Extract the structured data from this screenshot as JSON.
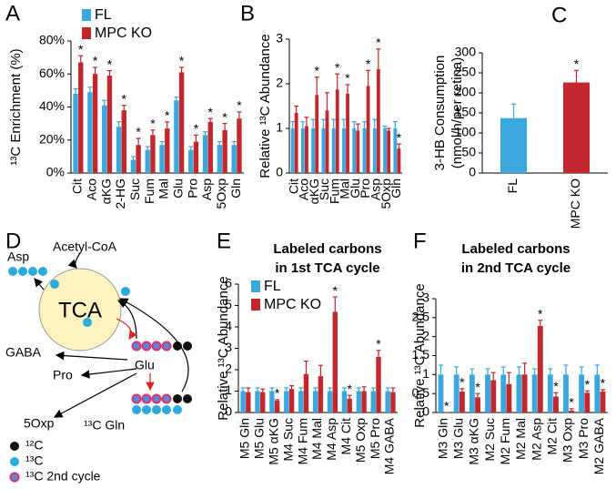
{
  "chart_data": [
    {
      "type": "bar",
      "panel": "A",
      "y_label": "¹³C Enrichment (%)",
      "categories": [
        "Cit",
        "Aco",
        "αKG",
        "2-HG",
        "Suc",
        "Fum",
        "Mal",
        "Glu",
        "Pro",
        "Asp",
        "5Oxp",
        "Gln"
      ],
      "series": [
        {
          "name": "FL",
          "color": "#3aa8de",
          "values": [
            48,
            49,
            41,
            28,
            8,
            14,
            17,
            44,
            14,
            23,
            17,
            17
          ],
          "errors": [
            3,
            3,
            3,
            3,
            2,
            2,
            2,
            2,
            2,
            2,
            2,
            2
          ]
        },
        {
          "name": "MPC KO",
          "color": "#c1272d",
          "values": [
            67,
            60,
            59,
            38,
            17,
            23,
            27,
            61,
            19,
            31,
            26,
            33
          ],
          "errors": [
            4,
            4,
            3,
            3,
            4,
            3,
            4,
            3,
            4,
            2,
            4,
            4
          ],
          "markers": [
            "*",
            "*",
            "*",
            "*",
            "*",
            "*",
            "*",
            "*",
            "*",
            "*",
            "*",
            "*"
          ]
        }
      ],
      "ylim": [
        0,
        80
      ],
      "yticks": [
        {
          "value": 0,
          "label": "0%"
        },
        {
          "value": 20,
          "label": "20%"
        },
        {
          "value": 40,
          "label": "40%"
        },
        {
          "value": 60,
          "label": "60%"
        },
        {
          "value": 80,
          "label": "80%"
        }
      ],
      "legend": "upper left"
    },
    {
      "type": "bar",
      "panel": "B",
      "y_label": "Relative ¹³C Abundance",
      "categories": [
        "Cit",
        "Aco",
        "αKG",
        "Suc",
        "Fum",
        "Mal",
        "Glu",
        "Pro",
        "Asp",
        "5Oxp",
        "Gln"
      ],
      "series": [
        {
          "color": "#3aa8de",
          "values": [
            1,
            1,
            1,
            1,
            1,
            1,
            1,
            1,
            1,
            1,
            1
          ],
          "errors": [
            0.15,
            0.15,
            0.2,
            0.2,
            0.2,
            0.2,
            0.15,
            0.15,
            0.2,
            0.05,
            0.15
          ]
        },
        {
          "color": "#c1272d",
          "values": [
            1.35,
            1.05,
            1.75,
            1.4,
            1.87,
            1.78,
            0.95,
            1.95,
            2.33,
            0.95,
            0.55
          ],
          "errors": [
            0.15,
            0.2,
            0.4,
            0.4,
            0.35,
            0.2,
            0.15,
            0.35,
            0.45,
            0.05,
            0.1
          ],
          "markers": [
            null,
            null,
            "*",
            null,
            "*",
            "*",
            null,
            "*",
            "*",
            null,
            "*"
          ]
        }
      ],
      "ylim": [
        0,
        3
      ],
      "yticks": [
        0,
        1,
        2,
        3
      ]
    },
    {
      "type": "bar",
      "panel": "C",
      "y_label": [
        "3-HB Consumption",
        "(nmol/h/per retina)"
      ],
      "categories": [
        "FL",
        "MPC KO"
      ],
      "values": [
        137,
        226
      ],
      "errors": [
        35,
        30
      ],
      "colors": [
        "#3aa8de",
        "#c1272d"
      ],
      "markers": [
        null,
        "*"
      ],
      "ylim": [
        0,
        300
      ],
      "yticks": [
        0,
        50,
        100,
        150,
        200,
        250,
        300
      ]
    },
    {
      "type": "bar",
      "panel": "E",
      "title": [
        "Labeled carbons",
        "in 1st TCA cycle"
      ],
      "y_label": "Relative ¹³C Abundance",
      "categories": [
        "M5 Gln",
        "M5 Glu",
        "M5 αKG",
        "M4 Suc",
        "M4 Fum",
        "M4 Mal",
        "M4 Asp",
        "M4 Cit",
        "M5 Oxp",
        "M5 Pro",
        "M4 GABA"
      ],
      "series": [
        {
          "name": "FL",
          "color": "#3aa8de",
          "values": [
            1,
            1,
            1,
            1,
            1,
            1,
            1,
            1,
            1,
            1,
            1
          ],
          "errors": [
            0.15,
            0.15,
            0.15,
            0.15,
            0.15,
            0.15,
            0.15,
            0.15,
            0.15,
            0.15,
            0.15
          ]
        },
        {
          "name": "MPC KO",
          "color": "#c1272d",
          "values": [
            0.95,
            0.95,
            0.55,
            1.1,
            1.8,
            1.7,
            4.7,
            0.65,
            1.0,
            2.6,
            0.95
          ],
          "errors": [
            0.2,
            0.15,
            0.05,
            0.15,
            0.6,
            0.5,
            0.7,
            0.15,
            0.2,
            0.3,
            0.2
          ],
          "markers": [
            null,
            null,
            "*",
            null,
            null,
            null,
            "*",
            "*",
            null,
            "*",
            null
          ]
        }
      ],
      "ylim": [
        0,
        6
      ],
      "yticks": [
        0,
        1,
        2,
        3,
        4,
        5,
        6
      ],
      "legend": "upper left"
    },
    {
      "type": "bar",
      "panel": "F",
      "title": [
        "Labeled carbons",
        "in 2nd TCA cycle"
      ],
      "y_label": "Relative ¹³C Abundance",
      "categories": [
        "M3 Gln",
        "M3 Glu",
        "M3 αKG",
        "M2 Suc",
        "M2 Fum",
        "M2 Mal",
        "M2 Asp",
        "M2 Cit",
        "M3 Oxp",
        "M3 Pro",
        "M2 GABA"
      ],
      "series": [
        {
          "color": "#3aa8de",
          "values": [
            1,
            1,
            1,
            1,
            1,
            1,
            1,
            1,
            1,
            1,
            1
          ],
          "errors": [
            0.25,
            0.2,
            0.15,
            0.15,
            0.2,
            0.2,
            0.15,
            0.15,
            0.25,
            0.2,
            0.25
          ]
        },
        {
          "color": "#c1272d",
          "values": [
            0,
            0.55,
            0.4,
            0.85,
            0.75,
            1.0,
            2.28,
            0.42,
            0.05,
            0.52,
            0.55
          ],
          "errors": [
            0,
            0.08,
            0.1,
            0.2,
            0.3,
            0.3,
            0.15,
            0.1,
            0.05,
            0.05,
            0.05
          ],
          "markers": [
            "*",
            "*",
            "*",
            null,
            null,
            null,
            "*",
            "*",
            "*",
            "*",
            "*"
          ]
        }
      ],
      "ylim": [
        0,
        3
      ],
      "yticks": [
        0,
        0.5,
        1,
        1.5,
        2,
        2.5,
        3
      ]
    }
  ],
  "diagram": {
    "panel": "D",
    "labels": [
      "Asp",
      "Acetyl-CoA",
      "TCA",
      "GABA",
      "Glu",
      "Pro",
      "5Oxp",
      "¹³C Gln"
    ],
    "legend": [
      "¹²C",
      "¹³C",
      "¹³C 2nd cycle"
    ]
  }
}
